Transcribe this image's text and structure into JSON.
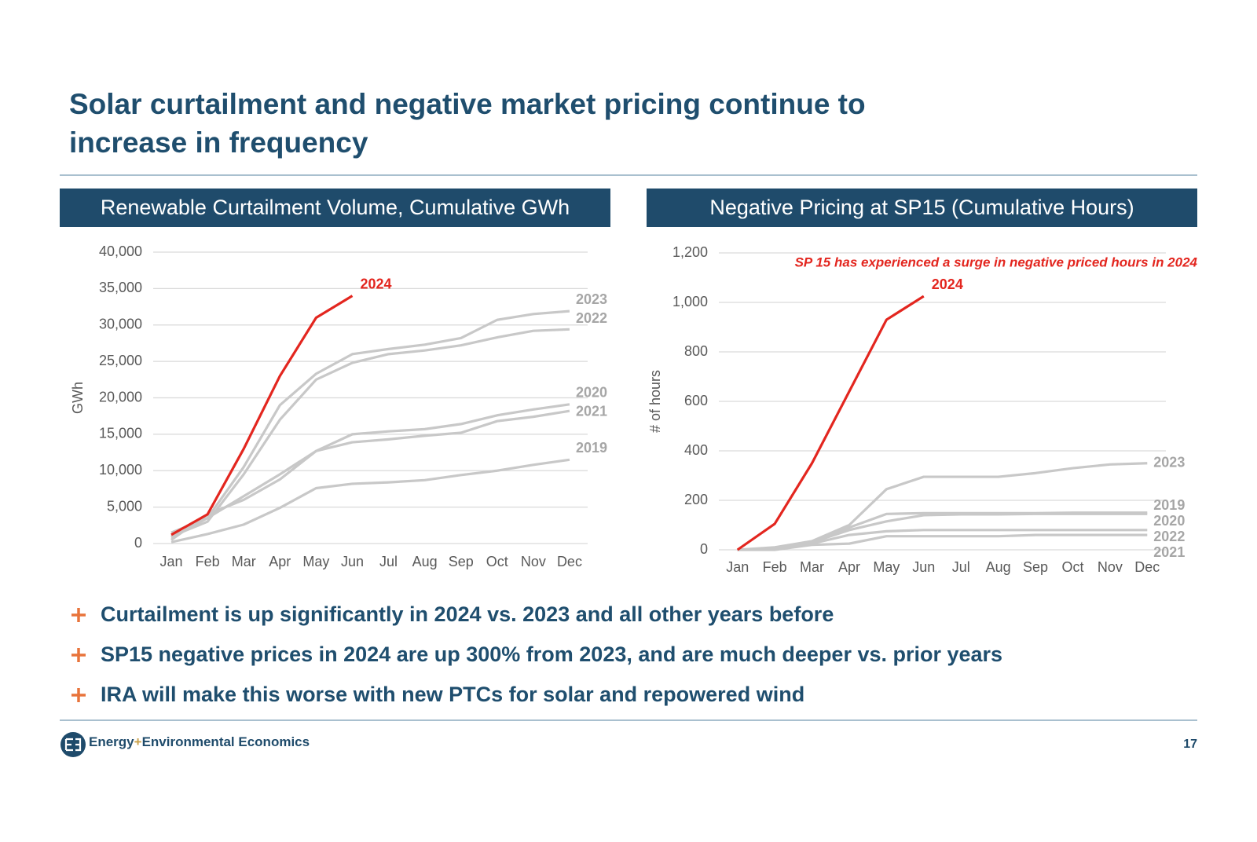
{
  "slide": {
    "title_lines": [
      "Solar curtailment and negative market pricing continue to",
      "increase in frequency"
    ],
    "bullets": [
      "Curtailment is up significantly in 2024 vs. 2023 and all other years before",
      "SP15 negative prices in 2024 are up 300% from 2023, and are much deeper vs. prior years",
      "IRA will make this worse with new PTCs for solar and repowered wind"
    ],
    "logo": [
      "Energy",
      "+",
      "Environmental Economics"
    ],
    "page_number": "17"
  },
  "chart_data": [
    {
      "type": "line",
      "title": "Renewable Curtailment Volume, Cumulative GWh",
      "y_label": "GWh",
      "categories": [
        "Jan",
        "Feb",
        "Mar",
        "Apr",
        "May",
        "Jun",
        "Jul",
        "Aug",
        "Sep",
        "Oct",
        "Nov",
        "Dec"
      ],
      "ylim": [
        0,
        40000
      ],
      "yticks": [
        0,
        {
          "value": 5000,
          "label": "5,000"
        },
        {
          "value": 10000,
          "label": "10,000"
        },
        {
          "value": 15000,
          "label": "15,000"
        },
        {
          "value": 20000,
          "label": "20,000"
        },
        {
          "value": 25000,
          "label": "25,000"
        },
        {
          "value": 30000,
          "label": "30,000"
        },
        {
          "value": 35000,
          "label": "35,000"
        },
        {
          "value": 40000,
          "label": "40,000"
        }
      ],
      "grid": true,
      "series": [
        {
          "name": "2019",
          "color": "#c8c8c8",
          "values": [
            200,
            1300,
            2600,
            4900,
            7600,
            8200,
            8400,
            8700,
            9400,
            10000,
            10800,
            11500
          ]
        },
        {
          "name": "2021",
          "color": "#c8c8c8",
          "values": [
            500,
            4000,
            6000,
            8800,
            12700,
            13900,
            14300,
            14800,
            15200,
            16800,
            17400,
            18200
          ]
        },
        {
          "name": "2020",
          "color": "#c8c8c8",
          "values": [
            800,
            3500,
            6500,
            9500,
            12700,
            15000,
            15400,
            15700,
            16400,
            17600,
            18400,
            19100
          ]
        },
        {
          "name": "2022",
          "color": "#c8c8c8",
          "values": [
            1000,
            3000,
            9500,
            17000,
            22500,
            24800,
            26000,
            26500,
            27200,
            28300,
            29200,
            29400
          ]
        },
        {
          "name": "2023",
          "color": "#c8c8c8",
          "values": [
            1500,
            3500,
            10500,
            19000,
            23300,
            26000,
            26700,
            27300,
            28200,
            30700,
            31500,
            31900
          ]
        },
        {
          "name": "2024",
          "color": "#e3261f",
          "values": [
            1200,
            4000,
            13000,
            23000,
            31000,
            34000,
            null,
            null,
            null,
            null,
            null,
            null
          ]
        }
      ]
    },
    {
      "type": "line",
      "title": "Negative Pricing at SP15 (Cumulative Hours)",
      "y_label": "# of hours",
      "annotation": "SP 15 has experienced a surge in negative priced hours in 2024",
      "categories": [
        "Jan",
        "Feb",
        "Mar",
        "Apr",
        "May",
        "Jun",
        "Jul",
        "Aug",
        "Sep",
        "Oct",
        "Nov",
        "Dec"
      ],
      "ylim": [
        0,
        1200
      ],
      "yticks": [
        0,
        200,
        400,
        600,
        800,
        {
          "value": 1000,
          "label": "1,000"
        },
        {
          "value": 1200,
          "label": "1,200"
        }
      ],
      "grid": true,
      "series": [
        {
          "name": "2021",
          "color": "#c8c8c8",
          "values": [
            0,
            0,
            20,
            25,
            55,
            55,
            55,
            55,
            60,
            60,
            60,
            60
          ]
        },
        {
          "name": "2022",
          "color": "#c8c8c8",
          "values": [
            0,
            5,
            25,
            60,
            75,
            80,
            80,
            80,
            80,
            80,
            80,
            80
          ]
        },
        {
          "name": "2020",
          "color": "#c8c8c8",
          "values": [
            0,
            5,
            30,
            80,
            115,
            140,
            143,
            143,
            145,
            145,
            145,
            145
          ]
        },
        {
          "name": "2019",
          "color": "#c8c8c8",
          "values": [
            0,
            5,
            25,
            90,
            145,
            148,
            148,
            148,
            148,
            150,
            150,
            150
          ]
        },
        {
          "name": "2023",
          "color": "#c8c8c8",
          "values": [
            0,
            10,
            35,
            100,
            245,
            295,
            295,
            295,
            310,
            330,
            345,
            350
          ]
        },
        {
          "name": "2024",
          "color": "#e3261f",
          "values": [
            0,
            105,
            350,
            640,
            930,
            1025,
            null,
            null,
            null,
            null,
            null,
            null
          ]
        }
      ]
    }
  ]
}
